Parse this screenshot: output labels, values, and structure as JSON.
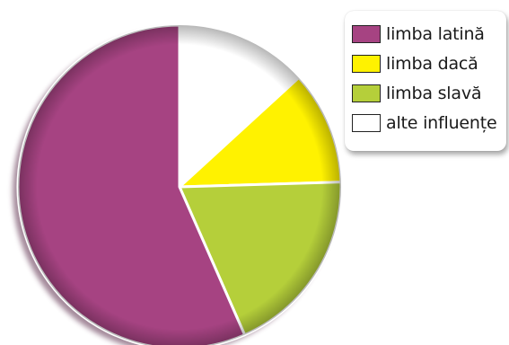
{
  "chart_data": {
    "type": "pie",
    "title": "",
    "categories": [
      "limba latină",
      "limba dacă",
      "limba slavă",
      "alte influențe"
    ],
    "values": [
      60,
      12,
      20,
      14
    ],
    "slice_order_clockwise_from_top": [
      "alte influențe",
      "limba dacă",
      "limba slavă",
      "limba latină"
    ],
    "colors": {
      "limba latină": "#a64382",
      "limba dacă": "#fff200",
      "limba slavă": "#b5cf3a",
      "alte influențe": "#ffffff"
    },
    "legend_placement": "top-right",
    "data_labels": false
  }
}
